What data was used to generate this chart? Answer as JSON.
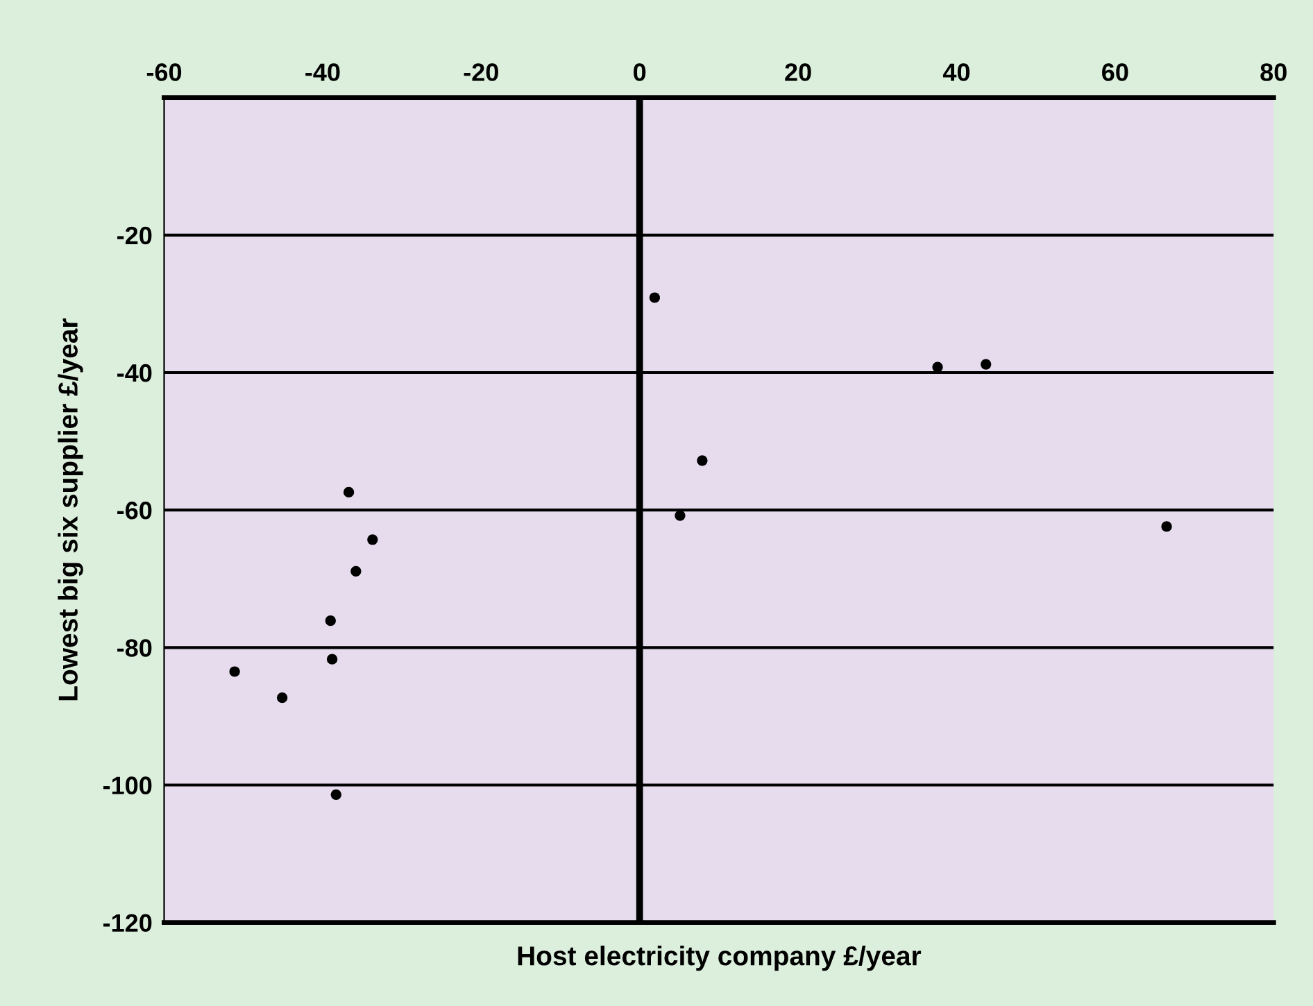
{
  "chart_data": {
    "type": "scatter",
    "xlabel": "Host electricity company £/year",
    "ylabel": "Lowest big six supplier £/year",
    "x": [
      -51.1,
      -45.1,
      -38.3,
      -39.0,
      -38.8,
      -36.7,
      -35.8,
      -33.7,
      1.9,
      5.1,
      7.9,
      37.6,
      43.7,
      66.5
    ],
    "values": [
      -83.5,
      -87.3,
      -101.4,
      -76.1,
      -81.7,
      -57.4,
      -68.9,
      -64.3,
      -29.1,
      -60.8,
      -52.8,
      -39.2,
      -38.8,
      -62.4
    ],
    "color": "#000000",
    "marker": "circle",
    "xlim": [
      -60,
      80
    ],
    "xticks": [
      -60,
      -40,
      -20,
      0,
      20,
      40,
      60,
      80
    ],
    "ylim": [
      -120,
      0
    ],
    "yticks": [
      -120,
      -100,
      -80,
      -60,
      -40,
      -20,
      {
        "value": 0,
        "label": null
      }
    ],
    "grid": "y",
    "ref_lines": [
      {
        "axis": "x",
        "value": 0,
        "color": "#000000"
      }
    ]
  }
}
